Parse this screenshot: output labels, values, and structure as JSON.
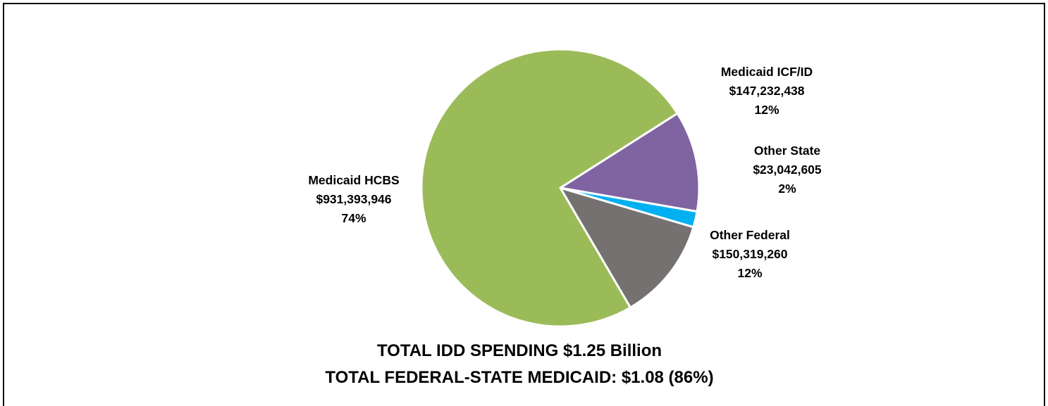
{
  "chart_data": {
    "type": "pie",
    "title_lines": [
      "TOTAL IDD SPENDING $1.25 Billion",
      "TOTAL FEDERAL-STATE MEDICAID: $1.08 (86%)"
    ],
    "start_slice": "Medicaid ICF/ID",
    "slices": [
      {
        "name": "Medicaid ICF/ID",
        "value": 147232438,
        "value_label": "$147,232,438",
        "percent_label": "12%",
        "color": "#8064a2"
      },
      {
        "name": "Other State",
        "value": 23042605,
        "value_label": "$23,042,605",
        "percent_label": "2%",
        "color": "#00b0f0"
      },
      {
        "name": "Other Federal",
        "value": 150319260,
        "value_label": "$150,319,260",
        "percent_label": "12%",
        "color": "#767171"
      },
      {
        "name": "Medicaid HCBS",
        "value": 931393946,
        "value_label": "$931,393,946",
        "percent_label": "74%",
        "color": "#9bbb59"
      }
    ]
  }
}
